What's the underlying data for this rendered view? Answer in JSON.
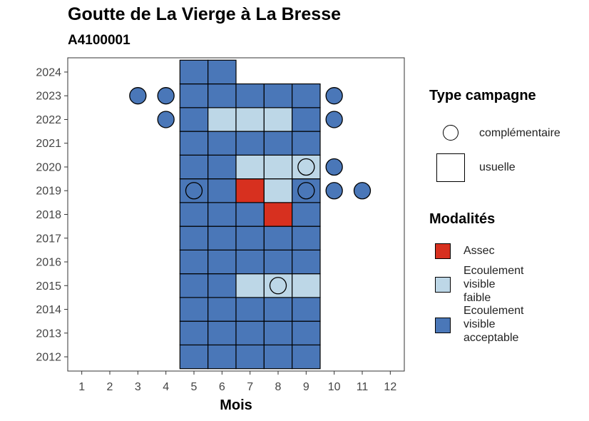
{
  "chart_data": {
    "type": "heatmap",
    "title": "Goutte de La Vierge à La Bresse",
    "subtitle": "A4100001",
    "xlabel": "Mois",
    "ylabel": "",
    "x_ticks": [
      "1",
      "2",
      "3",
      "4",
      "5",
      "6",
      "7",
      "8",
      "9",
      "10",
      "11",
      "12"
    ],
    "y_ticks": [
      "2012",
      "2013",
      "2014",
      "2015",
      "2016",
      "2017",
      "2018",
      "2019",
      "2020",
      "2021",
      "2022",
      "2023",
      "2024"
    ],
    "xlim": [
      0.5,
      12.5
    ],
    "ylim": [
      2011.4,
      2024.6
    ],
    "legend_shape": {
      "title": "Type campagne",
      "entries": [
        {
          "label": "complémentaire",
          "shape": "circle"
        },
        {
          "label": "usuelle",
          "shape": "square"
        }
      ]
    },
    "legend_fill": {
      "title": "Modalités",
      "entries": [
        {
          "key": "assec",
          "label_lines": [
            "Assec"
          ],
          "color": "#d7301f"
        },
        {
          "key": "faible",
          "label_lines": [
            "Ecoulement",
            "visible",
            "faible"
          ],
          "color": "#bdd7e7"
        },
        {
          "key": "acceptable",
          "label_lines": [
            "Ecoulement",
            "visible",
            "acceptable"
          ],
          "color": "#4a77b8"
        }
      ]
    },
    "usual_campaigns": [
      {
        "year": 2012,
        "months": [
          5,
          6,
          7,
          8,
          9
        ],
        "values": [
          "acceptable",
          "acceptable",
          "acceptable",
          "acceptable",
          "acceptable"
        ]
      },
      {
        "year": 2013,
        "months": [
          5,
          6,
          7,
          8,
          9
        ],
        "values": [
          "acceptable",
          "acceptable",
          "acceptable",
          "acceptable",
          "acceptable"
        ]
      },
      {
        "year": 2014,
        "months": [
          5,
          6,
          7,
          8,
          9
        ],
        "values": [
          "acceptable",
          "acceptable",
          "acceptable",
          "acceptable",
          "acceptable"
        ]
      },
      {
        "year": 2015,
        "months": [
          5,
          6,
          7,
          8,
          9
        ],
        "values": [
          "acceptable",
          "acceptable",
          "faible",
          "faible",
          "faible"
        ]
      },
      {
        "year": 2016,
        "months": [
          5,
          6,
          7,
          8,
          9
        ],
        "values": [
          "acceptable",
          "acceptable",
          "acceptable",
          "acceptable",
          "acceptable"
        ]
      },
      {
        "year": 2017,
        "months": [
          5,
          6,
          7,
          8,
          9
        ],
        "values": [
          "acceptable",
          "acceptable",
          "acceptable",
          "acceptable",
          "acceptable"
        ]
      },
      {
        "year": 2018,
        "months": [
          5,
          6,
          7,
          8,
          9
        ],
        "values": [
          "acceptable",
          "acceptable",
          "acceptable",
          "assec",
          "acceptable"
        ]
      },
      {
        "year": 2019,
        "months": [
          5,
          6,
          7,
          8,
          9
        ],
        "values": [
          "acceptable",
          "acceptable",
          "assec",
          "faible",
          "acceptable"
        ]
      },
      {
        "year": 2020,
        "months": [
          5,
          6,
          7,
          8,
          9
        ],
        "values": [
          "acceptable",
          "acceptable",
          "faible",
          "faible",
          "faible"
        ]
      },
      {
        "year": 2021,
        "months": [
          5,
          6,
          7,
          8,
          9
        ],
        "values": [
          "acceptable",
          "acceptable",
          "acceptable",
          "acceptable",
          "acceptable"
        ]
      },
      {
        "year": 2022,
        "months": [
          5,
          6,
          7,
          8,
          9
        ],
        "values": [
          "acceptable",
          "faible",
          "faible",
          "faible",
          "acceptable"
        ]
      },
      {
        "year": 2023,
        "months": [
          5,
          6,
          7,
          8,
          9
        ],
        "values": [
          "acceptable",
          "acceptable",
          "acceptable",
          "acceptable",
          "acceptable"
        ]
      },
      {
        "year": 2024,
        "months": [
          5,
          6
        ],
        "values": [
          "acceptable",
          "acceptable"
        ]
      }
    ],
    "complementary_campaigns": [
      {
        "year": 2023,
        "month": 3,
        "value": "acceptable"
      },
      {
        "year": 2023,
        "month": 4,
        "value": "acceptable"
      },
      {
        "year": 2023,
        "month": 10,
        "value": "acceptable"
      },
      {
        "year": 2022,
        "month": 4,
        "value": "acceptable"
      },
      {
        "year": 2022,
        "month": 10,
        "value": "acceptable"
      },
      {
        "year": 2020,
        "month": 9,
        "value": "none"
      },
      {
        "year": 2020,
        "month": 10,
        "value": "acceptable"
      },
      {
        "year": 2019,
        "month": 5,
        "value": "acceptable"
      },
      {
        "year": 2019,
        "month": 9,
        "value": "acceptable"
      },
      {
        "year": 2019,
        "month": 10,
        "value": "acceptable"
      },
      {
        "year": 2019,
        "month": 11,
        "value": "acceptable"
      },
      {
        "year": 2015,
        "month": 8,
        "value": "none"
      }
    ]
  }
}
